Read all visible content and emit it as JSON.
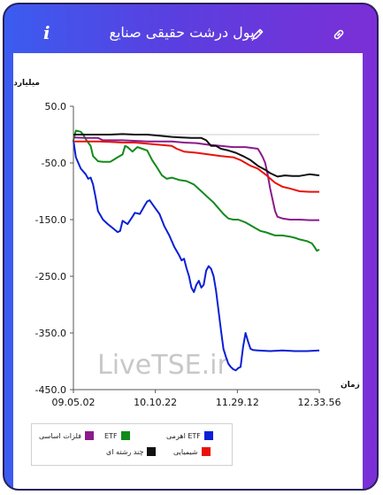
{
  "header": {
    "title": "پول درشت حقیقی صنایع",
    "info_label": "i"
  },
  "icons": {
    "info": "info-icon",
    "edit": "pencil-icon",
    "link": "link-icon"
  },
  "chart_data": {
    "type": "line",
    "ylabel": "میلیارد تومان",
    "xlabel": "زمان",
    "ylim": [
      -450,
      50
    ],
    "yticks": [
      "50.0",
      "-50.0",
      "-150.0",
      "-250.0",
      "-350.0",
      "-450.0"
    ],
    "xticks": [
      "09.05.02",
      "10.10.22",
      "11.29.12",
      "12.33.56"
    ],
    "watermark": "LiveTSE.ir",
    "grid": false,
    "series": [
      {
        "name": "ETF اهرمی",
        "color": "#0a1fd6",
        "values": [
          [
            0,
            -10
          ],
          [
            1,
            -40
          ],
          [
            3,
            -60
          ],
          [
            5,
            -70
          ],
          [
            6,
            -78
          ],
          [
            7,
            -76
          ],
          [
            8,
            -88
          ],
          [
            9,
            -110
          ],
          [
            10,
            -135
          ],
          [
            12,
            -150
          ],
          [
            14,
            -158
          ],
          [
            16,
            -165
          ],
          [
            18,
            -172
          ],
          [
            19,
            -170
          ],
          [
            20,
            -152
          ],
          [
            22,
            -158
          ],
          [
            24,
            -145
          ],
          [
            25,
            -138
          ],
          [
            27,
            -140
          ],
          [
            29,
            -125
          ],
          [
            30,
            -118
          ],
          [
            31,
            -116
          ],
          [
            33,
            -128
          ],
          [
            35,
            -140
          ],
          [
            37,
            -162
          ],
          [
            39,
            -178
          ],
          [
            41,
            -198
          ],
          [
            43,
            -213
          ],
          [
            44,
            -222
          ],
          [
            45,
            -219
          ],
          [
            46,
            -236
          ],
          [
            47,
            -250
          ],
          [
            48,
            -270
          ],
          [
            49,
            -278
          ],
          [
            50,
            -265
          ],
          [
            51,
            -258
          ],
          [
            52,
            -270
          ],
          [
            53,
            -265
          ],
          [
            54,
            -240
          ],
          [
            55,
            -232
          ],
          [
            56,
            -237
          ],
          [
            57,
            -250
          ],
          [
            58,
            -275
          ],
          [
            59,
            -310
          ],
          [
            60,
            -345
          ],
          [
            61,
            -378
          ],
          [
            62,
            -392
          ],
          [
            63,
            -404
          ],
          [
            64,
            -410
          ],
          [
            65,
            -414
          ],
          [
            66,
            -416
          ],
          [
            67,
            -412
          ],
          [
            68,
            -410
          ],
          [
            69,
            -375
          ],
          [
            70,
            -350
          ],
          [
            71,
            -365
          ],
          [
            72,
            -378
          ],
          [
            73,
            -380
          ],
          [
            75,
            -381
          ],
          [
            80,
            -382
          ],
          [
            85,
            -381
          ],
          [
            90,
            -382
          ],
          [
            95,
            -382
          ],
          [
            100,
            -381
          ]
        ]
      },
      {
        "name": "ETF",
        "color": "#118a1a",
        "values": [
          [
            0,
            -10
          ],
          [
            1,
            7
          ],
          [
            3,
            5
          ],
          [
            4,
            0
          ],
          [
            5,
            -8
          ],
          [
            7,
            -20
          ],
          [
            8,
            -38
          ],
          [
            10,
            -47
          ],
          [
            12,
            -48
          ],
          [
            15,
            -48
          ],
          [
            18,
            -40
          ],
          [
            20,
            -35
          ],
          [
            21,
            -20
          ],
          [
            22,
            -22
          ],
          [
            24,
            -30
          ],
          [
            26,
            -22
          ],
          [
            28,
            -25
          ],
          [
            30,
            -28
          ],
          [
            32,
            -45
          ],
          [
            34,
            -58
          ],
          [
            36,
            -72
          ],
          [
            38,
            -78
          ],
          [
            40,
            -76
          ],
          [
            43,
            -80
          ],
          [
            46,
            -82
          ],
          [
            49,
            -88
          ],
          [
            52,
            -100
          ],
          [
            55,
            -112
          ],
          [
            57,
            -120
          ],
          [
            59,
            -130
          ],
          [
            61,
            -140
          ],
          [
            63,
            -148
          ],
          [
            65,
            -150
          ],
          [
            67,
            -150
          ],
          [
            70,
            -155
          ],
          [
            72,
            -160
          ],
          [
            74,
            -165
          ],
          [
            76,
            -170
          ],
          [
            78,
            -172
          ],
          [
            80,
            -175
          ],
          [
            82,
            -178
          ],
          [
            85,
            -178
          ],
          [
            88,
            -180
          ],
          [
            90,
            -182
          ],
          [
            92,
            -185
          ],
          [
            95,
            -188
          ],
          [
            97,
            -192
          ],
          [
            98,
            -198
          ],
          [
            99,
            -205
          ],
          [
            100,
            -203
          ]
        ]
      },
      {
        "name": "فلزات اساسی",
        "color": "#8b1a8b",
        "values": [
          [
            0,
            -5
          ],
          [
            5,
            -6
          ],
          [
            10,
            -6
          ],
          [
            12,
            -10
          ],
          [
            20,
            -10
          ],
          [
            30,
            -12
          ],
          [
            40,
            -12
          ],
          [
            45,
            -14
          ],
          [
            50,
            -15
          ],
          [
            55,
            -18
          ],
          [
            60,
            -20
          ],
          [
            65,
            -22
          ],
          [
            70,
            -22
          ],
          [
            75,
            -25
          ],
          [
            76,
            -32
          ],
          [
            77,
            -40
          ],
          [
            78,
            -50
          ],
          [
            79,
            -70
          ],
          [
            80,
            -95
          ],
          [
            81,
            -115
          ],
          [
            82,
            -135
          ],
          [
            83,
            -145
          ],
          [
            85,
            -148
          ],
          [
            88,
            -150
          ],
          [
            92,
            -150
          ],
          [
            96,
            -151
          ],
          [
            100,
            -151
          ]
        ]
      },
      {
        "name": "شیمیایی",
        "color": "#e8120a",
        "values": [
          [
            0,
            -12
          ],
          [
            5,
            -12
          ],
          [
            10,
            -12
          ],
          [
            15,
            -13
          ],
          [
            20,
            -14
          ],
          [
            25,
            -14
          ],
          [
            30,
            -16
          ],
          [
            35,
            -18
          ],
          [
            40,
            -20
          ],
          [
            42,
            -25
          ],
          [
            45,
            -30
          ],
          [
            50,
            -32
          ],
          [
            55,
            -35
          ],
          [
            60,
            -38
          ],
          [
            65,
            -40
          ],
          [
            68,
            -45
          ],
          [
            72,
            -55
          ],
          [
            75,
            -60
          ],
          [
            78,
            -70
          ],
          [
            82,
            -85
          ],
          [
            85,
            -92
          ],
          [
            88,
            -95
          ],
          [
            92,
            -100
          ],
          [
            96,
            -101
          ],
          [
            100,
            -101
          ]
        ]
      },
      {
        "name": "چند رشته ای",
        "color": "#111111",
        "values": [
          [
            0,
            0
          ],
          [
            5,
            0
          ],
          [
            10,
            0
          ],
          [
            15,
            0
          ],
          [
            20,
            1
          ],
          [
            25,
            0
          ],
          [
            30,
            0
          ],
          [
            35,
            -2
          ],
          [
            40,
            -4
          ],
          [
            44,
            -5
          ],
          [
            48,
            -6
          ],
          [
            52,
            -6
          ],
          [
            54,
            -10
          ],
          [
            56,
            -20
          ],
          [
            58,
            -20
          ],
          [
            60,
            -25
          ],
          [
            63,
            -28
          ],
          [
            66,
            -32
          ],
          [
            69,
            -38
          ],
          [
            72,
            -45
          ],
          [
            75,
            -55
          ],
          [
            78,
            -62
          ],
          [
            80,
            -68
          ],
          [
            83,
            -74
          ],
          [
            86,
            -72
          ],
          [
            89,
            -73
          ],
          [
            92,
            -73
          ],
          [
            96,
            -70
          ],
          [
            100,
            -72
          ]
        ]
      }
    ]
  }
}
